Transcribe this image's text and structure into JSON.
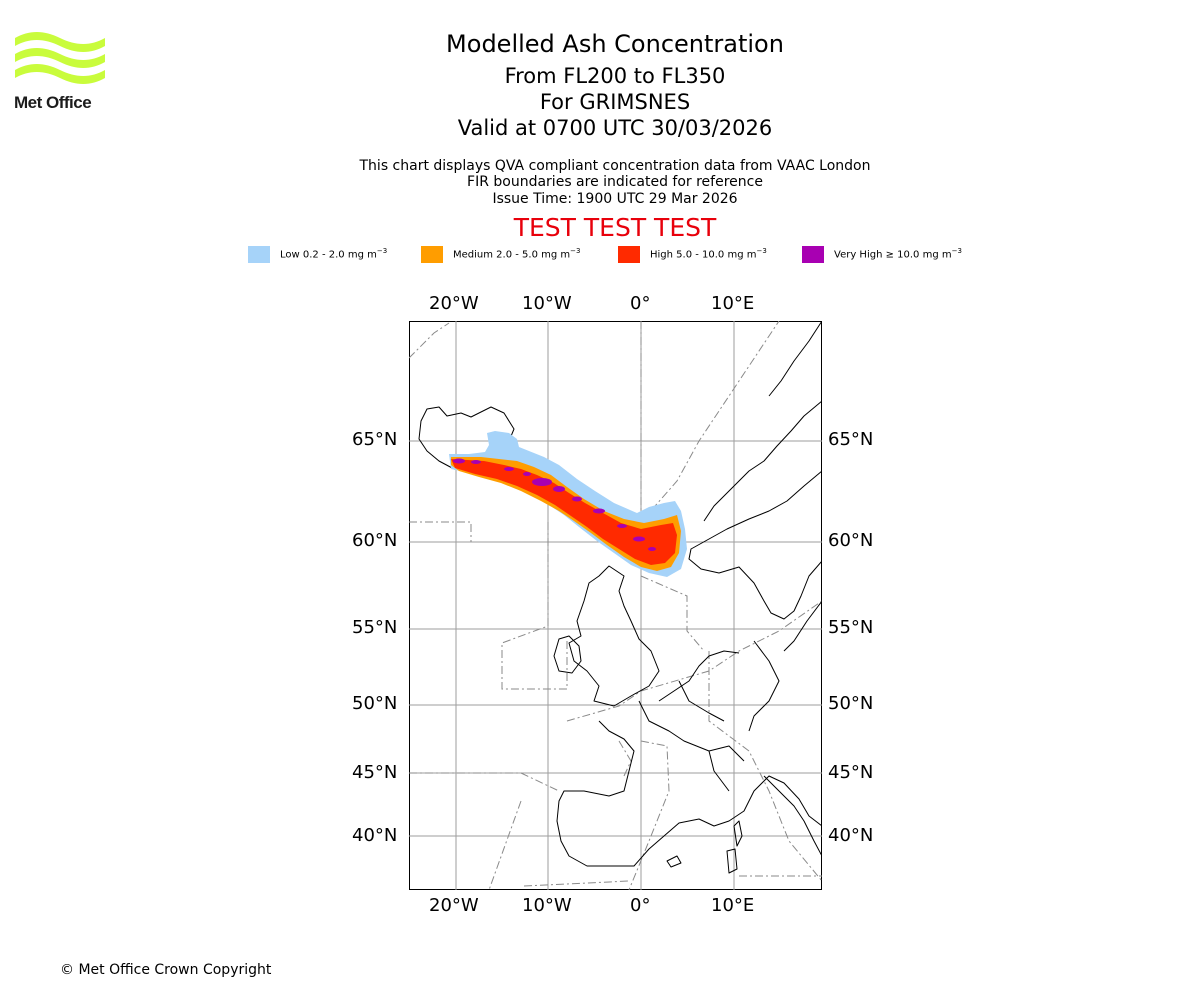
{
  "logo": {
    "text": "Met Office",
    "color": "#c9fc3c"
  },
  "header": {
    "title": "Modelled Ash Concentration",
    "level": "From FL200 to FL350",
    "location": "For GRIMSNES",
    "valid": "Valid at 0700 UTC 30/03/2026",
    "info1": "This chart displays QVA compliant concentration data from VAAC London",
    "info2": "FIR boundaries are indicated for reference",
    "info3": "Issue Time: 1900 UTC 29 Mar 2026",
    "test_banner": "TEST TEST TEST"
  },
  "legend": [
    {
      "label": "Low 0.2 - 2.0 mg m",
      "unit_exp": "−3",
      "color": "#a6d3f9"
    },
    {
      "label": "Medium 2.0 - 5.0 mg m",
      "unit_exp": "−3",
      "color": "#ff9d00"
    },
    {
      "label": "High 5.0 - 10.0 mg m",
      "unit_exp": "−3",
      "color": "#ff2a00"
    },
    {
      "label": "Very High  ≥  10.0 mg m",
      "unit_exp": "−3",
      "color": "#a800b2"
    }
  ],
  "axes": {
    "lon_labels": [
      "20°W",
      "10°W",
      "0°",
      "10°E"
    ],
    "lat_labels": [
      "65°N",
      "60°N",
      "55°N",
      "50°N",
      "45°N",
      "40°N"
    ]
  },
  "footer": {
    "copyright": "© Met Office Crown Copyright"
  }
}
